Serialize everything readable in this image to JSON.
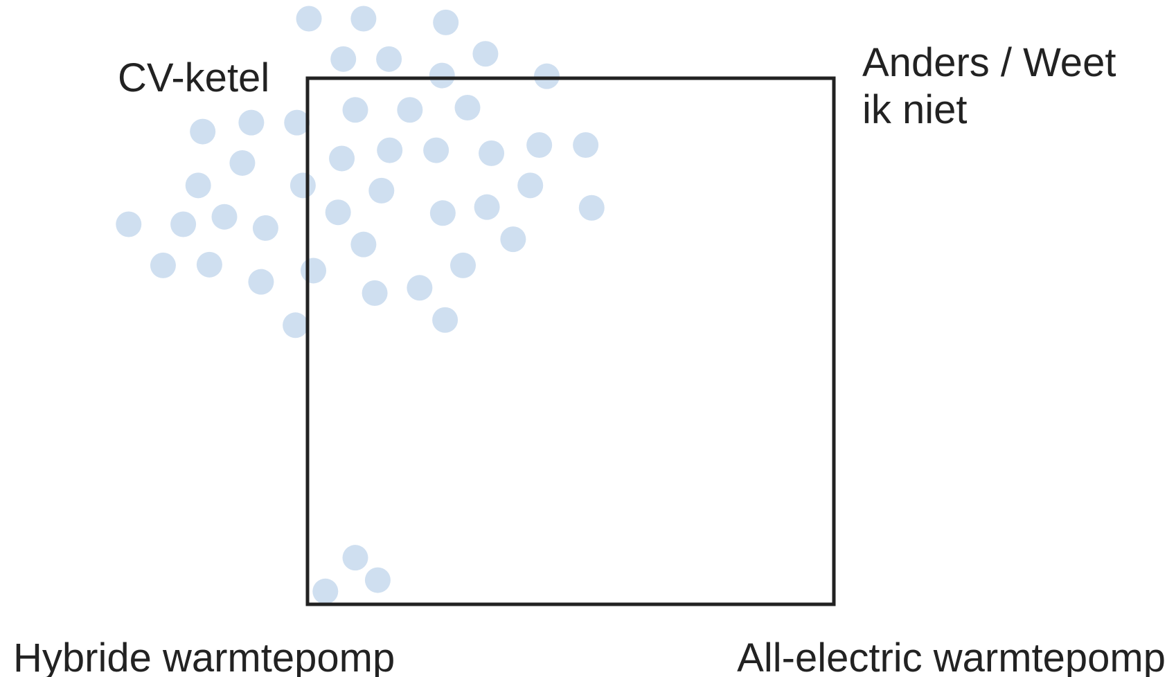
{
  "labels": {
    "top_left": "CV-ketel",
    "top_right": [
      "Anders / Weet",
      "ik niet"
    ],
    "bottom_left": "Hybride warmtepomp",
    "bottom_right": "All-electric warmtepomp"
  }
}
